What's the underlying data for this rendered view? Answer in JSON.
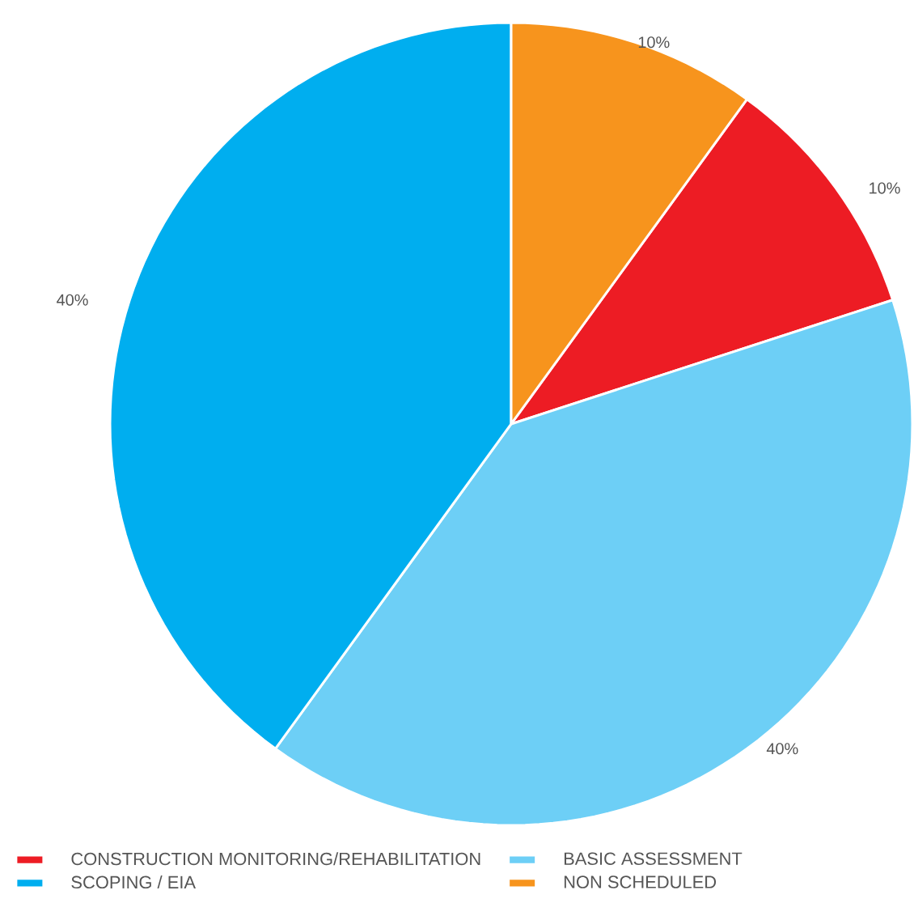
{
  "chart_data": {
    "type": "pie",
    "categories": [
      "CONSTRUCTION MONITORING/REHABILITATION",
      "BASIC ASSESSMENT",
      "SCOPING / EIA",
      "NON SCHEDULED"
    ],
    "values": [
      10,
      40,
      40,
      10
    ],
    "value_labels": [
      "10%",
      "40%",
      "40%",
      "10%"
    ],
    "colors": [
      "#ed1c24",
      "#6dcff6",
      "#00aeef",
      "#f7941d"
    ],
    "legend": "bottom"
  }
}
